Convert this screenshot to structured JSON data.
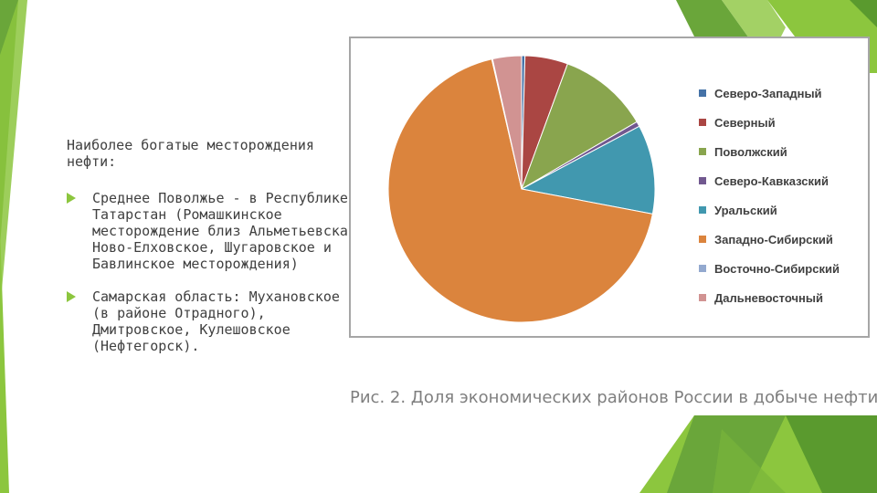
{
  "slide": {
    "heading": "Наиболее богатые месторождения нефти:",
    "bullets": [
      {
        "text": "Среднее Поволжье - в Республике Татарстан (Ромашкинское месторождение близ Альметьевска, Ново-Елховское, Шугаровское и Бавлинское месторождения)"
      },
      {
        "text": "Самарская область: Мухановское (в районе Отрадного), Дмитровское, Кулешовское (Нефтегорск)."
      }
    ],
    "caption": "Рис. 2. Доля экономических районов России в добыче нефти",
    "colors": {
      "accent_green": "#8cc63e",
      "dark_green": "#5a9a2e",
      "text": "#404040",
      "caption": "#7f7f7f"
    }
  },
  "chart_data": {
    "type": "pie",
    "title": "",
    "legend_position": "right",
    "categories": [
      "Северо-Западный",
      "Северный",
      "Поволжский",
      "Северо-Кавказский",
      "Уральский",
      "Западно-Сибирский",
      "Восточно-Сибирский",
      "Дальневосточный"
    ],
    "values": [
      0.4,
      5.2,
      11.0,
      0.6,
      10.8,
      68.4,
      0.1,
      3.5
    ],
    "colors": [
      "#4572a7",
      "#aa4643",
      "#89a54e",
      "#71588f",
      "#4198af",
      "#db843d",
      "#93a9cf",
      "#d19392"
    ]
  }
}
